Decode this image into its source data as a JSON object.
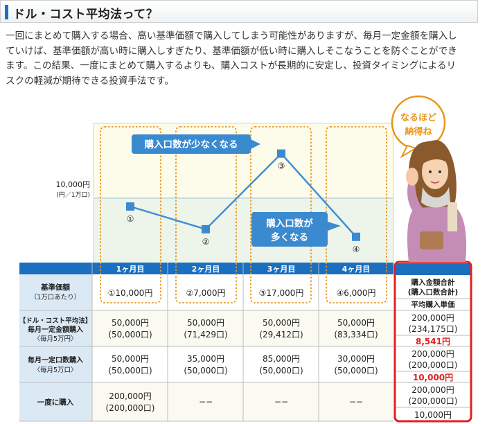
{
  "heading": {
    "title": "ドル・コスト平均法って？"
  },
  "intro": {
    "lines": [
      "一回にまとめて購入する場合、高い基準価額で購入してしまう可能性がありますが、毎月一定金額を購入し",
      "ていけば、基準価額が高い時に購入しすぎたり、基準価額が低い時に購入しそこなうことを防ぐことができ",
      "ます。この結果、一度にまとめて購入するよりも、購入コストが長期的に安定し、投資タイミングによるリ",
      "スクの軽減が期待できる投資手法です。"
    ]
  },
  "chart": {
    "ref_label": "10,000円",
    "ref_sublabel": "(円／1万口)",
    "callout_few": "購入口数が少なくなる",
    "callout_many_1": "購入口数が",
    "callout_many_2": "多くなる",
    "speech_1": "なるほど",
    "speech_2": "納得ね"
  },
  "chart_data": {
    "type": "line",
    "title": "",
    "xlabel": "",
    "ylabel": "",
    "categories": [
      "1ヶ月目",
      "2ヶ月目",
      "3ヶ月目",
      "4ヶ月目"
    ],
    "series": [
      {
        "values": [
          10000,
          7000,
          17000,
          6000
        ]
      }
    ],
    "point_labels": [
      "①",
      "②",
      "③",
      "④"
    ],
    "reference_line": 10000,
    "ylim": [
      2500,
      21000
    ]
  },
  "table": {
    "months": [
      "1ヶ月目",
      "2ヶ月目",
      "3ヶ月目",
      "4ヶ月目"
    ],
    "rows": [
      {
        "label": [
          "基準価額",
          "（1万口あたり）"
        ],
        "cells": [
          [
            "①10,000円"
          ],
          [
            "②7,000円"
          ],
          [
            "③17,000円"
          ],
          [
            "④6,000円"
          ]
        ]
      },
      {
        "label": [
          "【ドル・コスト平均法】",
          "毎月一定金額購入",
          "〈毎月5万円〉"
        ],
        "cells": [
          [
            "50,000円",
            "(50,000口)"
          ],
          [
            "50,000円",
            "(71,429口)"
          ],
          [
            "50,000円",
            "(29,412口)"
          ],
          [
            "50,000円",
            "(83,334口)"
          ]
        ]
      },
      {
        "label": [
          "毎月一定口数購入",
          "〈毎月5万口〉"
        ],
        "cells": [
          [
            "50,000円",
            "(50,000口)"
          ],
          [
            "35,000円",
            "(50,000口)"
          ],
          [
            "85,000円",
            "(50,000口)"
          ],
          [
            "30,000円",
            "(50,000口)"
          ]
        ]
      },
      {
        "label": [
          "一度に購入"
        ],
        "cells": [
          [
            "200,000円",
            "(200,000口)"
          ],
          [
            "−−"
          ],
          [
            "−−"
          ],
          [
            "−−"
          ]
        ]
      }
    ],
    "summary": {
      "header_1": "購入金額合計",
      "header_2": "(購入口数合計)",
      "header_3": "平均購入単価",
      "rows": [
        {
          "total": "200,000円",
          "units": "(234,175口)",
          "avg": "8,541円",
          "avg_red": true
        },
        {
          "total": "200,000円",
          "units": "(200,000口)",
          "avg": "10,000円",
          "avg_red": true
        },
        {
          "total": "200,000円",
          "units": "(200,000口)",
          "avg": "10,000円",
          "avg_red": false
        }
      ]
    }
  },
  "colors": {
    "accent_blue": "#1e6fc1",
    "line_blue": "#3f8fd4",
    "orange_dots": "#e8951c",
    "summary_border": "#e02020",
    "red_text": "#e02020",
    "table_header": "#1a6fbf"
  }
}
